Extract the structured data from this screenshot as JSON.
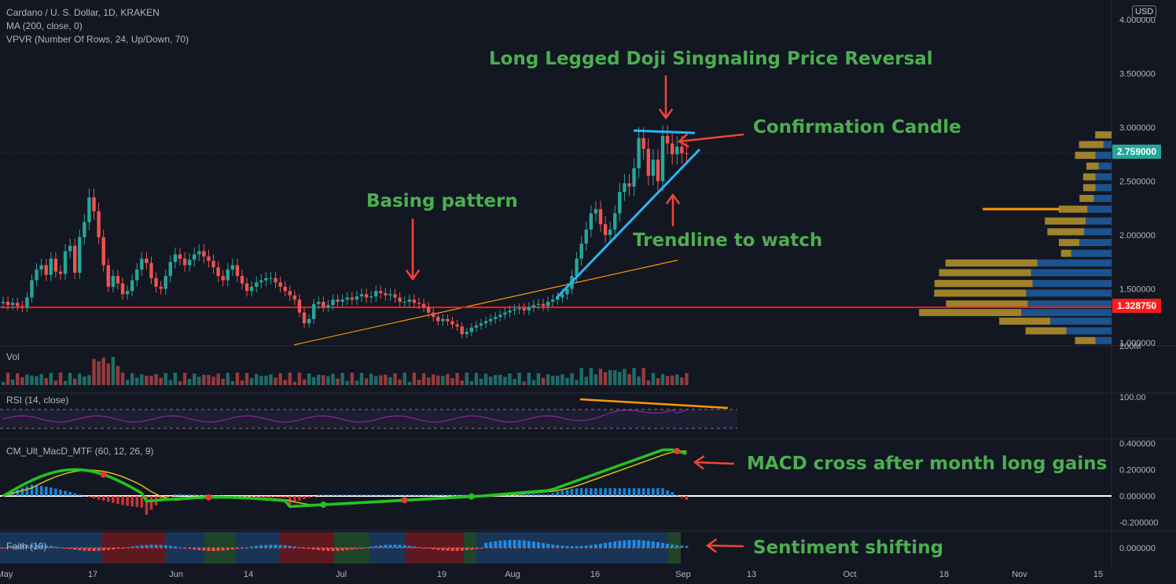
{
  "header": {
    "symbol_line": "Cardano / U. S. Dollar, 1D, KRAKEN",
    "ma_line": "MA (200, close, 0)",
    "vpvr_line": "VPVR (Number Of Rows, 24, Up/Down, 70)",
    "currency_badge": "USD"
  },
  "panes": {
    "volume_label": "Vol",
    "volume_axis_label": "200M",
    "rsi_label": "RSI (14, close)",
    "rsi_axis_label": "100.00",
    "macd_label": "CM_Ult_MacD_MTF (60, 12, 26, 9)",
    "faith_label": "Faith (10)"
  },
  "annotations": {
    "doji": "Long Legged Doji Singnaling Price Reversal",
    "confirmation": "Confirmation Candle",
    "basing": "Basing pattern",
    "trendline": "Trendline to watch",
    "macd": "MACD cross after month long gains",
    "sentiment": "Sentiment shifting"
  },
  "price_tags": {
    "current": "2.759000",
    "support": "1.328750"
  },
  "colors": {
    "background": "#131722",
    "up_candle": "#26a69a",
    "down_candle": "#ef5350",
    "annotation_text": "#4caf50",
    "arrows": "#f44336",
    "trendline": "#29b6f6",
    "support_line": "#ff1a1a",
    "ma_line": "#ff9800",
    "rsi_line": "#9c27b0",
    "macd_line": "#21c521",
    "signal_line": "#d4c21a",
    "current_price_tag": "#26a69a"
  },
  "chart_data": {
    "type": "candlestick",
    "title": "Cardano / U. S. Dollar, 1D, KRAKEN",
    "x_axis": {
      "tick_labels": [
        "May",
        "17",
        "Jun",
        "14",
        "Jul",
        "19",
        "Aug",
        "16",
        "Sep",
        "13",
        "Oct",
        "18",
        "Nov",
        "15"
      ]
    },
    "price_axis": {
      "tick_labels": [
        "4.000000",
        "3.500000",
        "3.000000",
        "2.500000",
        "2.000000",
        "1.500000",
        "1.000000"
      ],
      "range": [
        0.98,
        4.05
      ]
    },
    "closes": [
      1.38,
      1.35,
      1.37,
      1.34,
      1.33,
      1.42,
      1.58,
      1.68,
      1.72,
      1.63,
      1.78,
      1.66,
      1.64,
      1.85,
      1.9,
      1.65,
      1.98,
      2.12,
      2.35,
      2.22,
      1.98,
      1.72,
      1.52,
      1.62,
      1.55,
      1.45,
      1.48,
      1.58,
      1.68,
      1.78,
      1.74,
      1.6,
      1.52,
      1.5,
      1.62,
      1.75,
      1.82,
      1.78,
      1.72,
      1.77,
      1.82,
      1.85,
      1.8,
      1.76,
      1.7,
      1.62,
      1.58,
      1.68,
      1.72,
      1.62,
      1.55,
      1.48,
      1.52,
      1.56,
      1.58,
      1.6,
      1.6,
      1.56,
      1.52,
      1.48,
      1.44,
      1.4,
      1.28,
      1.18,
      1.22,
      1.36,
      1.38,
      1.33,
      1.35,
      1.4,
      1.38,
      1.4,
      1.42,
      1.4,
      1.43,
      1.45,
      1.42,
      1.43,
      1.48,
      1.46,
      1.44,
      1.45,
      1.42,
      1.38,
      1.38,
      1.4,
      1.37,
      1.36,
      1.33,
      1.28,
      1.24,
      1.2,
      1.22,
      1.2,
      1.17,
      1.15,
      1.08,
      1.1,
      1.14,
      1.16,
      1.18,
      1.2,
      1.22,
      1.24,
      1.26,
      1.28,
      1.3,
      1.31,
      1.32,
      1.3,
      1.33,
      1.35,
      1.36,
      1.34,
      1.38,
      1.4,
      1.42,
      1.45,
      1.5,
      1.62,
      1.78,
      1.92,
      2.05,
      2.2,
      2.24,
      2.1,
      2.0,
      2.05,
      2.2,
      2.4,
      2.48,
      2.45,
      2.62,
      2.9,
      2.8,
      2.55,
      2.7,
      2.5,
      2.92,
      2.85,
      2.75,
      2.82,
      2.76,
      2.759
    ],
    "ma200": {
      "from": [
        1.0,
        0.98
      ],
      "to": [
        2.84,
        1.46
      ]
    },
    "support_price": 1.32875,
    "current_price": 2.759,
    "trendline": {
      "from": [
        0.5,
        1.42
      ],
      "to": [
        0.64,
        2.78
      ]
    },
    "resistance_top": 2.97,
    "vpvr_rows": [
      {
        "price": 2.93,
        "up": 0.08,
        "down": 0.0
      },
      {
        "price": 2.84,
        "up": 0.12,
        "down": 0.05
      },
      {
        "price": 2.74,
        "up": 0.1,
        "down": 0.1
      },
      {
        "price": 2.64,
        "up": 0.06,
        "down": 0.08
      },
      {
        "price": 2.54,
        "up": 0.06,
        "down": 0.1
      },
      {
        "price": 2.44,
        "up": 0.06,
        "down": 0.1
      },
      {
        "price": 2.34,
        "up": 0.07,
        "down": 0.11
      },
      {
        "price": 2.24,
        "up": 0.14,
        "down": 0.15
      },
      {
        "price": 2.13,
        "up": 0.2,
        "down": 0.16
      },
      {
        "price": 2.03,
        "up": 0.18,
        "down": 0.17
      },
      {
        "price": 1.93,
        "up": 0.1,
        "down": 0.2
      },
      {
        "price": 1.83,
        "up": 0.05,
        "down": 0.25
      },
      {
        "price": 1.74,
        "up": 0.45,
        "down": 0.46
      },
      {
        "price": 1.65,
        "up": 0.45,
        "down": 0.5
      },
      {
        "price": 1.55,
        "up": 0.48,
        "down": 0.49
      },
      {
        "price": 1.46,
        "up": 0.45,
        "down": 0.53
      },
      {
        "price": 1.36,
        "up": 0.4,
        "down": 0.52
      },
      {
        "price": 1.28,
        "up": 0.5,
        "down": 0.56
      },
      {
        "price": 1.2,
        "up": 0.25,
        "down": 0.38
      },
      {
        "price": 1.11,
        "up": 0.2,
        "down": 0.28
      },
      {
        "price": 1.02,
        "up": 0.1,
        "down": 0.1
      }
    ],
    "macd_axis": {
      "tick_labels": [
        "0.400000",
        "0.200000",
        "0.000000",
        "-0.200000"
      ],
      "range": [
        -0.28,
        0.42
      ]
    },
    "rsi_axis": {
      "overbought": 70,
      "oversold": 30
    },
    "faith_axis": {
      "tick_labels": [
        "0.000000"
      ]
    },
    "sentiment_axis_label": "0.000000"
  }
}
